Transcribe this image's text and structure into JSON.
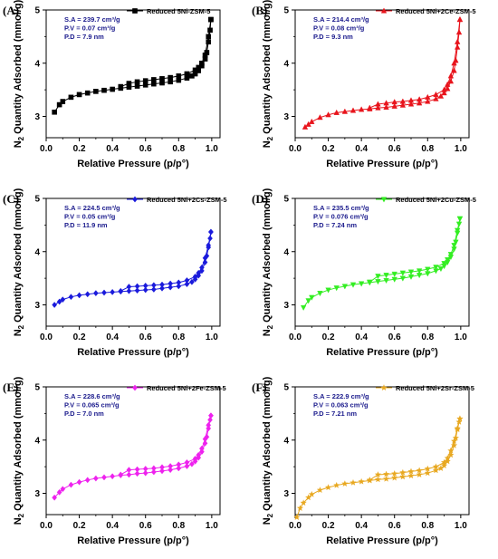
{
  "figure": {
    "ylabel": "N2 Quantity Adsorbed (mmol/g)",
    "ylabel_main": "N",
    "ylabel_sub": "2",
    "ylabel_rest": " Quantity Adsorbed (mmol/g)",
    "xlabel": "Relative Pressure (p/p°)",
    "annotation_color": "#1a1a8c"
  },
  "chart_data": [
    {
      "panel": "(A)",
      "type": "line",
      "series": [
        {
          "name": "Reduced 5Ni-ZSM-5",
          "color": "#000000",
          "marker": "square"
        }
      ],
      "annotations": [
        "S.A = 239.7 cm³/g",
        "P.V = 0.07 cm³/g",
        "P.D = 7.9 nm"
      ],
      "xlabel": "Relative Pressure (p/p°)",
      "ylabel": "N2 Quantity Adsorbed (mmol/g)",
      "xlim": [
        0,
        1.05
      ],
      "ylim": [
        2.6,
        5.0
      ],
      "xticks": [
        "0.0",
        "0.2",
        "0.4",
        "0.6",
        "0.8",
        "1.0"
      ],
      "yticks": [
        "3",
        "4",
        "5"
      ],
      "adsorption": [
        [
          0.05,
          3.08
        ],
        [
          0.08,
          3.22
        ],
        [
          0.1,
          3.28
        ],
        [
          0.15,
          3.36
        ],
        [
          0.2,
          3.41
        ],
        [
          0.25,
          3.44
        ],
        [
          0.3,
          3.47
        ],
        [
          0.35,
          3.49
        ],
        [
          0.4,
          3.51
        ],
        [
          0.45,
          3.53
        ],
        [
          0.5,
          3.55
        ],
        [
          0.55,
          3.57
        ],
        [
          0.6,
          3.59
        ],
        [
          0.65,
          3.61
        ],
        [
          0.7,
          3.63
        ],
        [
          0.75,
          3.65
        ],
        [
          0.8,
          3.68
        ],
        [
          0.85,
          3.72
        ],
        [
          0.88,
          3.76
        ],
        [
          0.9,
          3.8
        ],
        [
          0.92,
          3.86
        ],
        [
          0.94,
          3.95
        ],
        [
          0.96,
          4.08
        ],
        [
          0.97,
          4.2
        ],
        [
          0.98,
          4.4
        ],
        [
          0.99,
          4.62
        ],
        [
          0.995,
          4.82
        ]
      ],
      "desorption": [
        [
          0.995,
          4.82
        ],
        [
          0.98,
          4.5
        ],
        [
          0.96,
          4.15
        ],
        [
          0.94,
          4.0
        ],
        [
          0.92,
          3.92
        ],
        [
          0.9,
          3.87
        ],
        [
          0.85,
          3.8
        ],
        [
          0.8,
          3.76
        ],
        [
          0.75,
          3.73
        ],
        [
          0.7,
          3.71
        ],
        [
          0.65,
          3.69
        ],
        [
          0.6,
          3.67
        ],
        [
          0.55,
          3.65
        ],
        [
          0.5,
          3.62
        ],
        [
          0.45,
          3.56
        ]
      ]
    },
    {
      "panel": "(B)",
      "type": "line",
      "series": [
        {
          "name": "Reduced 5Ni+2Ce-ZSM-5",
          "color": "#e8141c",
          "marker": "triangle-up"
        }
      ],
      "annotations": [
        "S.A = 214.4 cm³/g",
        "P.V = 0.08 cm³/g",
        "P.D = 9.3 nm"
      ],
      "xlabel": "Relative Pressure (p/p°)",
      "ylabel": "N2 Quantity Adsorbed (mmol/g)",
      "xlim": [
        0,
        1.05
      ],
      "ylim": [
        2.6,
        5.0
      ],
      "xticks": [
        "0.0",
        "0.2",
        "0.4",
        "0.6",
        "0.8",
        "1.0"
      ],
      "yticks": [
        "3",
        "4",
        "5"
      ],
      "adsorption": [
        [
          0.06,
          2.8
        ],
        [
          0.08,
          2.85
        ],
        [
          0.1,
          2.9
        ],
        [
          0.15,
          2.98
        ],
        [
          0.2,
          3.03
        ],
        [
          0.25,
          3.07
        ],
        [
          0.3,
          3.09
        ],
        [
          0.35,
          3.11
        ],
        [
          0.4,
          3.13
        ],
        [
          0.45,
          3.14
        ],
        [
          0.5,
          3.16
        ],
        [
          0.55,
          3.17
        ],
        [
          0.6,
          3.19
        ],
        [
          0.65,
          3.21
        ],
        [
          0.7,
          3.23
        ],
        [
          0.75,
          3.25
        ],
        [
          0.8,
          3.28
        ],
        [
          0.85,
          3.33
        ],
        [
          0.88,
          3.38
        ],
        [
          0.9,
          3.44
        ],
        [
          0.92,
          3.52
        ],
        [
          0.94,
          3.66
        ],
        [
          0.96,
          3.86
        ],
        [
          0.97,
          4.05
        ],
        [
          0.98,
          4.3
        ],
        [
          0.99,
          4.58
        ],
        [
          0.995,
          4.82
        ]
      ],
      "desorption": [
        [
          0.995,
          4.82
        ],
        [
          0.98,
          4.4
        ],
        [
          0.96,
          4.0
        ],
        [
          0.94,
          3.76
        ],
        [
          0.92,
          3.6
        ],
        [
          0.9,
          3.5
        ],
        [
          0.85,
          3.41
        ],
        [
          0.8,
          3.36
        ],
        [
          0.75,
          3.32
        ],
        [
          0.7,
          3.3
        ],
        [
          0.65,
          3.28
        ],
        [
          0.6,
          3.27
        ],
        [
          0.55,
          3.25
        ],
        [
          0.5,
          3.23
        ],
        [
          0.45,
          3.16
        ]
      ]
    },
    {
      "panel": "(C)",
      "type": "line",
      "series": [
        {
          "name": "Reduced 5Ni+2Cs-ZSM-5",
          "color": "#1a1adc",
          "marker": "diamond"
        }
      ],
      "annotations": [
        "S.A = 224.5 cm³/g",
        "P.V = 0.05 cm³/g",
        "P.D = 11.9 nm"
      ],
      "xlabel": "Relative Pressure (p/p°)",
      "ylabel": "N2 Quantity Adsorbed (mmol/g)",
      "xlim": [
        0,
        1.05
      ],
      "ylim": [
        2.6,
        5.0
      ],
      "xticks": [
        "0.0",
        "0.2",
        "0.4",
        "0.6",
        "0.8",
        "1.0"
      ],
      "yticks": [
        "3",
        "4",
        "5"
      ],
      "adsorption": [
        [
          0.05,
          3.0
        ],
        [
          0.08,
          3.06
        ],
        [
          0.1,
          3.1
        ],
        [
          0.15,
          3.15
        ],
        [
          0.2,
          3.18
        ],
        [
          0.25,
          3.2
        ],
        [
          0.3,
          3.22
        ],
        [
          0.35,
          3.23
        ],
        [
          0.4,
          3.24
        ],
        [
          0.45,
          3.25
        ],
        [
          0.5,
          3.26
        ],
        [
          0.55,
          3.27
        ],
        [
          0.6,
          3.28
        ],
        [
          0.65,
          3.29
        ],
        [
          0.7,
          3.31
        ],
        [
          0.75,
          3.33
        ],
        [
          0.8,
          3.35
        ],
        [
          0.85,
          3.39
        ],
        [
          0.88,
          3.43
        ],
        [
          0.9,
          3.48
        ],
        [
          0.92,
          3.55
        ],
        [
          0.94,
          3.64
        ],
        [
          0.96,
          3.8
        ],
        [
          0.97,
          3.92
        ],
        [
          0.98,
          4.08
        ],
        [
          0.99,
          4.25
        ],
        [
          0.995,
          4.37
        ]
      ],
      "desorption": [
        [
          0.995,
          4.37
        ],
        [
          0.98,
          4.12
        ],
        [
          0.96,
          3.88
        ],
        [
          0.94,
          3.7
        ],
        [
          0.92,
          3.6
        ],
        [
          0.9,
          3.53
        ],
        [
          0.85,
          3.46
        ],
        [
          0.8,
          3.42
        ],
        [
          0.75,
          3.4
        ],
        [
          0.7,
          3.38
        ],
        [
          0.65,
          3.37
        ],
        [
          0.6,
          3.36
        ],
        [
          0.55,
          3.35
        ],
        [
          0.5,
          3.34
        ],
        [
          0.45,
          3.26
        ]
      ]
    },
    {
      "panel": "(D)",
      "type": "line",
      "series": [
        {
          "name": "Reduced 5Ni+2Cu-ZSM-5",
          "color": "#33ee22",
          "marker": "triangle-down"
        }
      ],
      "annotations": [
        "S.A = 235.5 cm³/g",
        "P.V = 0.076 cm³/g",
        "P.D = 7.24 nm"
      ],
      "xlabel": "Relative Pressure (p/p°)",
      "ylabel": "N2 Quantity Adsorbed (mmol/g)",
      "xlim": [
        0,
        1.05
      ],
      "ylim": [
        2.6,
        5.0
      ],
      "xticks": [
        "0.0",
        "0.2",
        "0.4",
        "0.6",
        "0.8",
        "1.0"
      ],
      "yticks": [
        "3",
        "4",
        "5"
      ],
      "adsorption": [
        [
          0.05,
          2.95
        ],
        [
          0.08,
          3.08
        ],
        [
          0.1,
          3.14
        ],
        [
          0.15,
          3.22
        ],
        [
          0.2,
          3.28
        ],
        [
          0.25,
          3.32
        ],
        [
          0.3,
          3.35
        ],
        [
          0.35,
          3.38
        ],
        [
          0.4,
          3.4
        ],
        [
          0.45,
          3.42
        ],
        [
          0.5,
          3.44
        ],
        [
          0.55,
          3.46
        ],
        [
          0.6,
          3.48
        ],
        [
          0.65,
          3.5
        ],
        [
          0.7,
          3.53
        ],
        [
          0.75,
          3.56
        ],
        [
          0.8,
          3.59
        ],
        [
          0.85,
          3.64
        ],
        [
          0.88,
          3.68
        ],
        [
          0.9,
          3.73
        ],
        [
          0.92,
          3.8
        ],
        [
          0.94,
          3.9
        ],
        [
          0.96,
          4.05
        ],
        [
          0.97,
          4.18
        ],
        [
          0.98,
          4.35
        ],
        [
          0.99,
          4.52
        ],
        [
          0.995,
          4.62
        ]
      ],
      "desorption": [
        [
          0.995,
          4.62
        ],
        [
          0.98,
          4.4
        ],
        [
          0.96,
          4.12
        ],
        [
          0.94,
          3.95
        ],
        [
          0.92,
          3.85
        ],
        [
          0.9,
          3.78
        ],
        [
          0.85,
          3.71
        ],
        [
          0.8,
          3.67
        ],
        [
          0.75,
          3.64
        ],
        [
          0.7,
          3.62
        ],
        [
          0.65,
          3.6
        ],
        [
          0.6,
          3.58
        ],
        [
          0.55,
          3.56
        ],
        [
          0.5,
          3.54
        ],
        [
          0.45,
          3.43
        ]
      ]
    },
    {
      "panel": "(E)",
      "type": "line",
      "series": [
        {
          "name": "Reduced 5Ni+2Fe-ZSM-5",
          "color": "#ee22ee",
          "marker": "diamond"
        }
      ],
      "annotations": [
        "S.A = 228.6 cm³/g",
        "P.V = 0.065 cm³/g",
        "P.D = 7.0 nm"
      ],
      "xlabel": "Relative Pressure (p/p°)",
      "ylabel": "N2 Quantity Adsorbed (mmol/g)",
      "xlim": [
        0,
        1.05
      ],
      "ylim": [
        2.6,
        5.0
      ],
      "xticks": [
        "0.0",
        "0.2",
        "0.4",
        "0.6",
        "0.8",
        "1.0"
      ],
      "yticks": [
        "3",
        "4",
        "5"
      ],
      "adsorption": [
        [
          0.05,
          2.92
        ],
        [
          0.08,
          3.02
        ],
        [
          0.1,
          3.08
        ],
        [
          0.15,
          3.16
        ],
        [
          0.2,
          3.21
        ],
        [
          0.25,
          3.25
        ],
        [
          0.3,
          3.28
        ],
        [
          0.35,
          3.3
        ],
        [
          0.4,
          3.32
        ],
        [
          0.45,
          3.34
        ],
        [
          0.5,
          3.35
        ],
        [
          0.55,
          3.37
        ],
        [
          0.6,
          3.38
        ],
        [
          0.65,
          3.4
        ],
        [
          0.7,
          3.42
        ],
        [
          0.75,
          3.44
        ],
        [
          0.8,
          3.47
        ],
        [
          0.85,
          3.51
        ],
        [
          0.88,
          3.55
        ],
        [
          0.9,
          3.6
        ],
        [
          0.92,
          3.67
        ],
        [
          0.94,
          3.78
        ],
        [
          0.96,
          3.94
        ],
        [
          0.97,
          4.06
        ],
        [
          0.98,
          4.22
        ],
        [
          0.99,
          4.38
        ],
        [
          0.995,
          4.46
        ]
      ],
      "desorption": [
        [
          0.995,
          4.46
        ],
        [
          0.98,
          4.28
        ],
        [
          0.96,
          4.02
        ],
        [
          0.94,
          3.84
        ],
        [
          0.92,
          3.72
        ],
        [
          0.9,
          3.65
        ],
        [
          0.85,
          3.58
        ],
        [
          0.8,
          3.54
        ],
        [
          0.75,
          3.51
        ],
        [
          0.7,
          3.49
        ],
        [
          0.65,
          3.47
        ],
        [
          0.6,
          3.46
        ],
        [
          0.55,
          3.45
        ],
        [
          0.5,
          3.44
        ],
        [
          0.45,
          3.35
        ]
      ]
    },
    {
      "panel": "(F)",
      "type": "line",
      "series": [
        {
          "name": "Reduced 5Ni+2Sr-ZSM-5",
          "color": "#e8a820",
          "marker": "star"
        }
      ],
      "annotations": [
        "S.A = 222.9 cm³/g",
        "P.V = 0.063 cm³/g",
        "P.D = 7.21 nm"
      ],
      "xlabel": "Relative Pressure (p/p°)",
      "ylabel": "N2 Quantity Adsorbed (mmol/g)",
      "xlim": [
        0,
        1.05
      ],
      "ylim": [
        2.6,
        5.0
      ],
      "xticks": [
        "0.0",
        "0.2",
        "0.4",
        "0.6",
        "0.8",
        "1.0"
      ],
      "yticks": [
        "3",
        "4",
        "5"
      ],
      "adsorption": [
        [
          0.01,
          2.55
        ],
        [
          0.03,
          2.72
        ],
        [
          0.05,
          2.82
        ],
        [
          0.08,
          2.92
        ],
        [
          0.1,
          2.98
        ],
        [
          0.15,
          3.06
        ],
        [
          0.2,
          3.11
        ],
        [
          0.25,
          3.15
        ],
        [
          0.3,
          3.18
        ],
        [
          0.35,
          3.2
        ],
        [
          0.4,
          3.22
        ],
        [
          0.45,
          3.24
        ],
        [
          0.5,
          3.26
        ],
        [
          0.55,
          3.27
        ],
        [
          0.6,
          3.29
        ],
        [
          0.65,
          3.31
        ],
        [
          0.7,
          3.33
        ],
        [
          0.75,
          3.35
        ],
        [
          0.8,
          3.38
        ],
        [
          0.85,
          3.43
        ],
        [
          0.88,
          3.47
        ],
        [
          0.9,
          3.52
        ],
        [
          0.92,
          3.6
        ],
        [
          0.94,
          3.72
        ],
        [
          0.96,
          3.9
        ],
        [
          0.97,
          4.04
        ],
        [
          0.98,
          4.2
        ],
        [
          0.99,
          4.34
        ],
        [
          0.995,
          4.4
        ]
      ],
      "desorption": [
        [
          0.995,
          4.4
        ],
        [
          0.98,
          4.22
        ],
        [
          0.96,
          3.98
        ],
        [
          0.94,
          3.8
        ],
        [
          0.92,
          3.66
        ],
        [
          0.9,
          3.58
        ],
        [
          0.85,
          3.5
        ],
        [
          0.8,
          3.46
        ],
        [
          0.75,
          3.43
        ],
        [
          0.7,
          3.41
        ],
        [
          0.65,
          3.39
        ],
        [
          0.6,
          3.37
        ],
        [
          0.55,
          3.36
        ],
        [
          0.5,
          3.35
        ],
        [
          0.45,
          3.25
        ]
      ]
    }
  ]
}
